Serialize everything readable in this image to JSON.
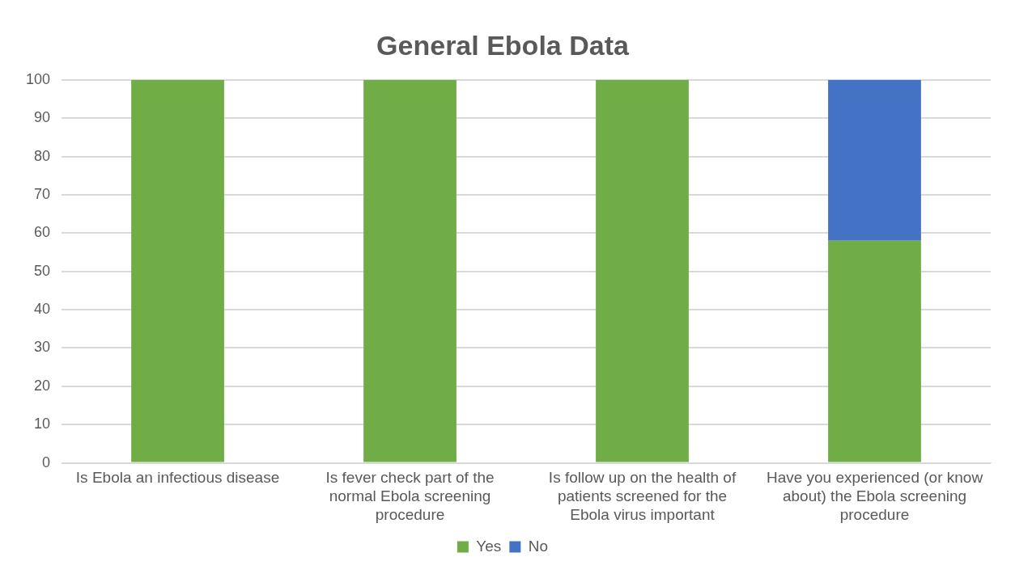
{
  "chart_data": {
    "type": "bar",
    "title": "General Ebola Data",
    "stacked": true,
    "categories": [
      "Is Ebola an infectious disease",
      "Is fever check part of the normal Ebola screening procedure",
      "Is follow up on the health of patients screened for the Ebola virus important",
      "Have you experienced (or know about) the Ebola screening procedure"
    ],
    "series": [
      {
        "name": "Yes",
        "color": "#70ad47",
        "values": [
          100,
          100,
          100,
          58
        ]
      },
      {
        "name": "No",
        "color": "#4472c4",
        "values": [
          0,
          0,
          0,
          42
        ]
      }
    ],
    "ylim": [
      0,
      100
    ],
    "yticks": [
      0,
      10,
      20,
      30,
      40,
      50,
      60,
      70,
      80,
      90,
      100
    ],
    "grid": "y",
    "legend": "bottom"
  }
}
